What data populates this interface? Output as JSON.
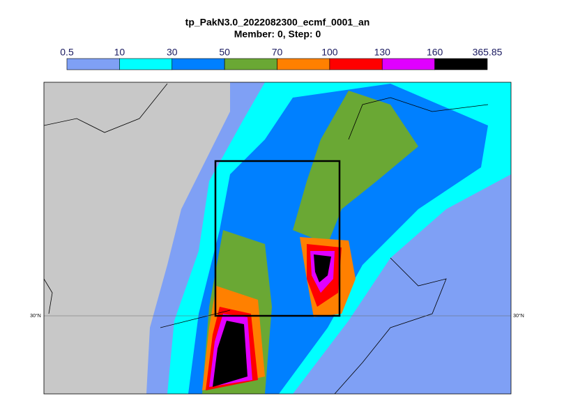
{
  "title": "tp_PakN3.0_2022082300_ecmf_0001_an",
  "subtitle": "Member: 0, Step: 0",
  "colorbar": {
    "levels": [
      0.5,
      10,
      30,
      50,
      70,
      100,
      130,
      160,
      365.85
    ],
    "colors": [
      "#7fa0f5",
      "#00ffff",
      "#0080ff",
      "#6aa834",
      "#ff8000",
      "#ff0000",
      "#e000ff",
      "#000000"
    ]
  },
  "map": {
    "lat_labels": [
      "30°N",
      "30°N"
    ]
  }
}
